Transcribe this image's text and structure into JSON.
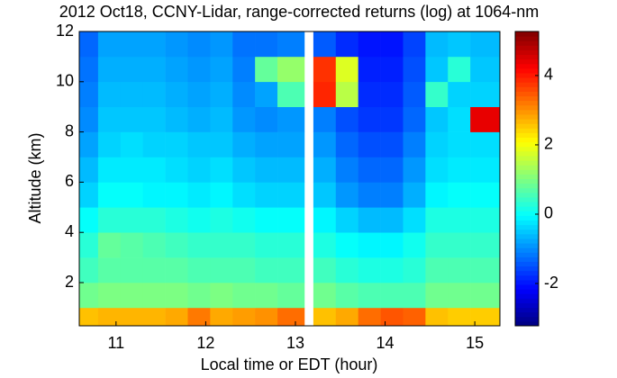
{
  "chart_data": {
    "type": "heatmap",
    "title": "2012 Oct18, CCNY-Lidar, range-corrected returns (log) at 1064-nm",
    "x_label": "Local time or EDT (hour)",
    "y_label": "Altitude (km)",
    "x_bins": [
      10.55,
      10.8,
      11.05,
      11.3,
      11.55,
      11.8,
      12.05,
      12.3,
      12.55,
      12.8,
      13.1,
      13.2,
      13.45,
      13.7,
      13.95,
      14.2,
      14.45,
      14.7,
      14.95,
      15.28
    ],
    "y_bins": [
      0.28,
      1,
      2,
      3,
      4,
      5,
      6,
      7,
      8,
      9,
      10,
      11,
      12
    ],
    "z": [
      [
        2.6,
        2.7,
        2.7,
        2.7,
        2.8,
        3.2,
        2.8,
        2.9,
        3.0,
        3.3,
        null,
        2.6,
        2.8,
        3.3,
        3.5,
        3.4,
        2.6,
        2.5,
        2.5
      ],
      [
        0.9,
        1.0,
        1.0,
        1.0,
        1.0,
        0.9,
        1.0,
        0.9,
        0.9,
        0.8,
        null,
        0.9,
        0.7,
        0.6,
        0.6,
        0.6,
        0.9,
        0.9,
        0.9
      ],
      [
        0.5,
        0.7,
        0.7,
        0.7,
        0.7,
        0.6,
        0.6,
        0.6,
        0.5,
        0.5,
        null,
        0.5,
        0.3,
        0.2,
        0.2,
        0.3,
        0.6,
        0.6,
        0.6
      ],
      [
        0.3,
        0.8,
        0.7,
        0.6,
        0.5,
        0.4,
        0.4,
        0.4,
        0.3,
        0.3,
        null,
        0.2,
        0.0,
        -0.1,
        -0.1,
        0.1,
        0.4,
        0.4,
        0.4
      ],
      [
        0.0,
        0.3,
        0.3,
        0.3,
        0.2,
        0.1,
        0.2,
        0.1,
        0.0,
        0.0,
        null,
        -0.1,
        -0.4,
        -0.6,
        -0.6,
        -0.3,
        0.2,
        0.2,
        0.2
      ],
      [
        -0.4,
        0.0,
        0.0,
        -0.1,
        -0.1,
        -0.2,
        -0.1,
        -0.3,
        -0.4,
        -0.4,
        null,
        -0.5,
        -0.9,
        -1.1,
        -1.1,
        -0.7,
        -0.1,
        0.0,
        0.0
      ],
      [
        -0.6,
        -0.2,
        -0.2,
        -0.2,
        -0.3,
        -0.4,
        -0.3,
        -0.5,
        -0.6,
        -0.6,
        null,
        -0.7,
        -1.1,
        -1.3,
        -1.3,
        -0.9,
        -0.3,
        -0.2,
        -0.2
      ],
      [
        -0.8,
        -0.4,
        -0.3,
        -0.4,
        -0.4,
        -0.5,
        -0.5,
        -0.7,
        -0.8,
        -0.8,
        null,
        -0.9,
        -1.3,
        -1.5,
        -1.5,
        -1.1,
        -0.4,
        -0.3,
        -0.3
      ],
      [
        -1.0,
        -0.5,
        -0.5,
        -0.5,
        -0.6,
        -0.7,
        -0.6,
        -0.9,
        -1.0,
        -0.9,
        null,
        -1.1,
        -1.5,
        -1.7,
        -1.7,
        -1.3,
        -0.5,
        -0.3,
        4.4
      ],
      [
        -1.1,
        -0.6,
        -0.6,
        -0.6,
        -0.7,
        -0.8,
        -0.7,
        -1.0,
        -0.8,
        0.6,
        null,
        3.9,
        1.5,
        -1.8,
        -1.8,
        -1.4,
        0.4,
        -0.4,
        -0.4
      ],
      [
        -1.2,
        -0.7,
        -0.7,
        -0.7,
        -0.8,
        -0.9,
        -0.8,
        -1.1,
        0.8,
        1.2,
        null,
        3.8,
        1.8,
        -1.9,
        -1.9,
        -1.5,
        -0.5,
        0.3,
        -0.5
      ],
      [
        -1.3,
        -0.8,
        -0.8,
        -0.8,
        -0.9,
        -1.0,
        -0.9,
        -1.2,
        -1.2,
        -1.1,
        null,
        -1.4,
        -1.8,
        -2.0,
        -2.0,
        -1.6,
        -0.6,
        -0.5,
        -0.6
      ]
    ],
    "xlim": [
      10.59,
      15.28
    ],
    "ylim": [
      0.28,
      12
    ],
    "xticks": [
      11,
      12,
      13,
      14,
      15
    ],
    "yticks": [
      2,
      4,
      6,
      8,
      10,
      12
    ],
    "colormap": "jet",
    "clim": [
      -3.22,
      5.27
    ],
    "cticks": [
      -2,
      0,
      2,
      4
    ]
  }
}
